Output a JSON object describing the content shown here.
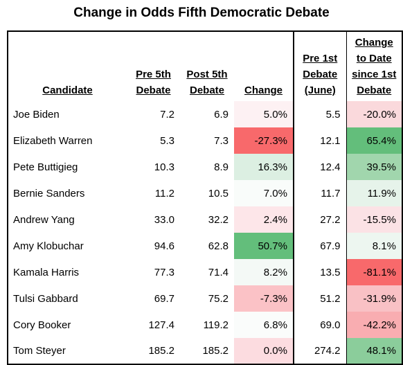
{
  "title": "Change in Odds Fifth Democratic Debate",
  "columns": {
    "candidate": "Candidate",
    "pre5": [
      "Pre 5th",
      "Debate"
    ],
    "post5": [
      "Post 5th",
      "Debate"
    ],
    "change": "Change",
    "pre1": [
      "Pre 1st",
      "Debate",
      "(June)"
    ],
    "change_to_date": [
      "Change",
      "to Date",
      "since 1st",
      "Debate"
    ]
  },
  "rows": [
    {
      "name": "Joe Biden",
      "pre5": "7.2",
      "post5": "6.9",
      "change": "5.0%",
      "pre1": "5.5",
      "ctd": "-20.0%",
      "change_color": "#fdf1f3",
      "ctd_color": "#fad9dc"
    },
    {
      "name": "Elizabeth Warren",
      "pre5": "5.3",
      "post5": "7.3",
      "change": "-27.3%",
      "pre1": "12.1",
      "ctd": "65.4%",
      "change_color": "#f8696b",
      "ctd_color": "#63be7b"
    },
    {
      "name": "Pete Buttigieg",
      "pre5": "10.3",
      "post5": "8.9",
      "change": "16.3%",
      "pre1": "12.4",
      "ctd": "39.5%",
      "change_color": "#dcefe2",
      "ctd_color": "#a1d6ad"
    },
    {
      "name": "Bernie Sanders",
      "pre5": "11.2",
      "post5": "10.5",
      "change": "7.0%",
      "pre1": "11.7",
      "ctd": "11.9%",
      "change_color": "#f9fcfa",
      "ctd_color": "#e6f3ea"
    },
    {
      "name": "Andrew Yang",
      "pre5": "33.0",
      "post5": "32.2",
      "change": "2.4%",
      "pre1": "27.2",
      "ctd": "-15.5%",
      "change_color": "#fde6e9",
      "ctd_color": "#fbe2e5"
    },
    {
      "name": "Amy Klobuchar",
      "pre5": "94.6",
      "post5": "62.8",
      "change": "50.7%",
      "pre1": "67.9",
      "ctd": "8.1%",
      "change_color": "#63be7b",
      "ctd_color": "#edf6f0"
    },
    {
      "name": "Kamala Harris",
      "pre5": "77.3",
      "post5": "71.4",
      "change": "8.2%",
      "pre1": "13.5",
      "ctd": "-81.1%",
      "change_color": "#f4f9f6",
      "ctd_color": "#f8696b"
    },
    {
      "name": "Tulsi Gabbard",
      "pre5": "69.7",
      "post5": "75.2",
      "change": "-7.3%",
      "pre1": "51.2",
      "ctd": "-31.9%",
      "change_color": "#fbc2c6",
      "ctd_color": "#f9c1c5"
    },
    {
      "name": "Cory Booker",
      "pre5": "127.4",
      "post5": "119.2",
      "change": "6.8%",
      "pre1": "69.0",
      "ctd": "-42.2%",
      "change_color": "#fafcfb",
      "ctd_color": "#f9adb1"
    },
    {
      "name": "Tom Steyer",
      "pre5": "185.2",
      "post5": "185.2",
      "change": "0.0%",
      "pre1": "274.2",
      "ctd": "48.1%",
      "change_color": "#fcdce0",
      "ctd_color": "#8bcd9b"
    }
  ]
}
